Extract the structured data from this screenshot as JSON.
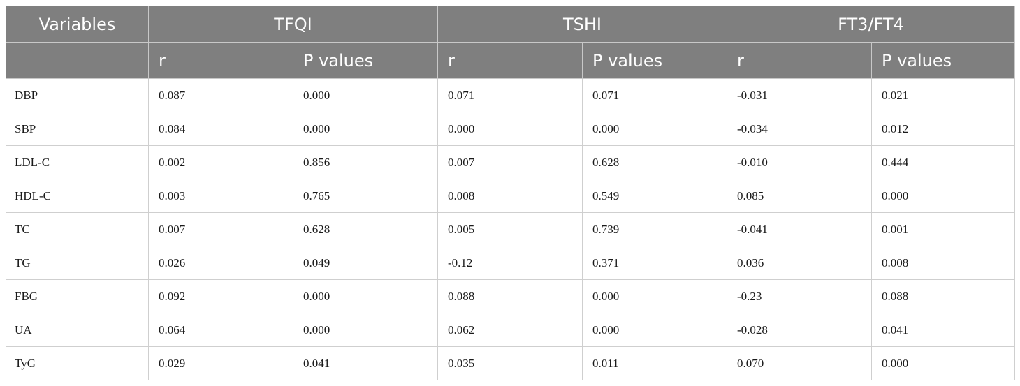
{
  "headers": {
    "variables": "Variables",
    "groups": [
      "TFQI",
      "TSHI",
      "FT3/FT4"
    ],
    "r": "r",
    "p": "P values"
  },
  "rows": [
    [
      "DBP",
      "0.087",
      "0.000",
      "0.071",
      "0.071",
      "-0.031",
      "0.021"
    ],
    [
      "SBP",
      "0.084",
      "0.000",
      "0.000",
      "0.000",
      "-0.034",
      "0.012"
    ],
    [
      "LDL-C",
      "0.002",
      "0.856",
      "0.007",
      "0.628",
      "-0.010",
      "0.444"
    ],
    [
      "HDL-C",
      "0.003",
      "0.765",
      "0.008",
      "0.549",
      "0.085",
      "0.000"
    ],
    [
      "TC",
      "0.007",
      "0.628",
      "0.005",
      "0.739",
      "-0.041",
      "0.001"
    ],
    [
      "TG",
      "0.026",
      "0.049",
      "-0.12",
      "0.371",
      "0.036",
      "0.008"
    ],
    [
      "FBG",
      "0.092",
      "0.000",
      "0.088",
      "0.000",
      "-0.23",
      "0.088"
    ],
    [
      "UA",
      "0.064",
      "0.000",
      "0.062",
      "0.000",
      "-0.028",
      "0.041"
    ],
    [
      "TyG",
      "0.029",
      "0.041",
      "0.035",
      "0.011",
      "0.070",
      "0.000"
    ]
  ]
}
